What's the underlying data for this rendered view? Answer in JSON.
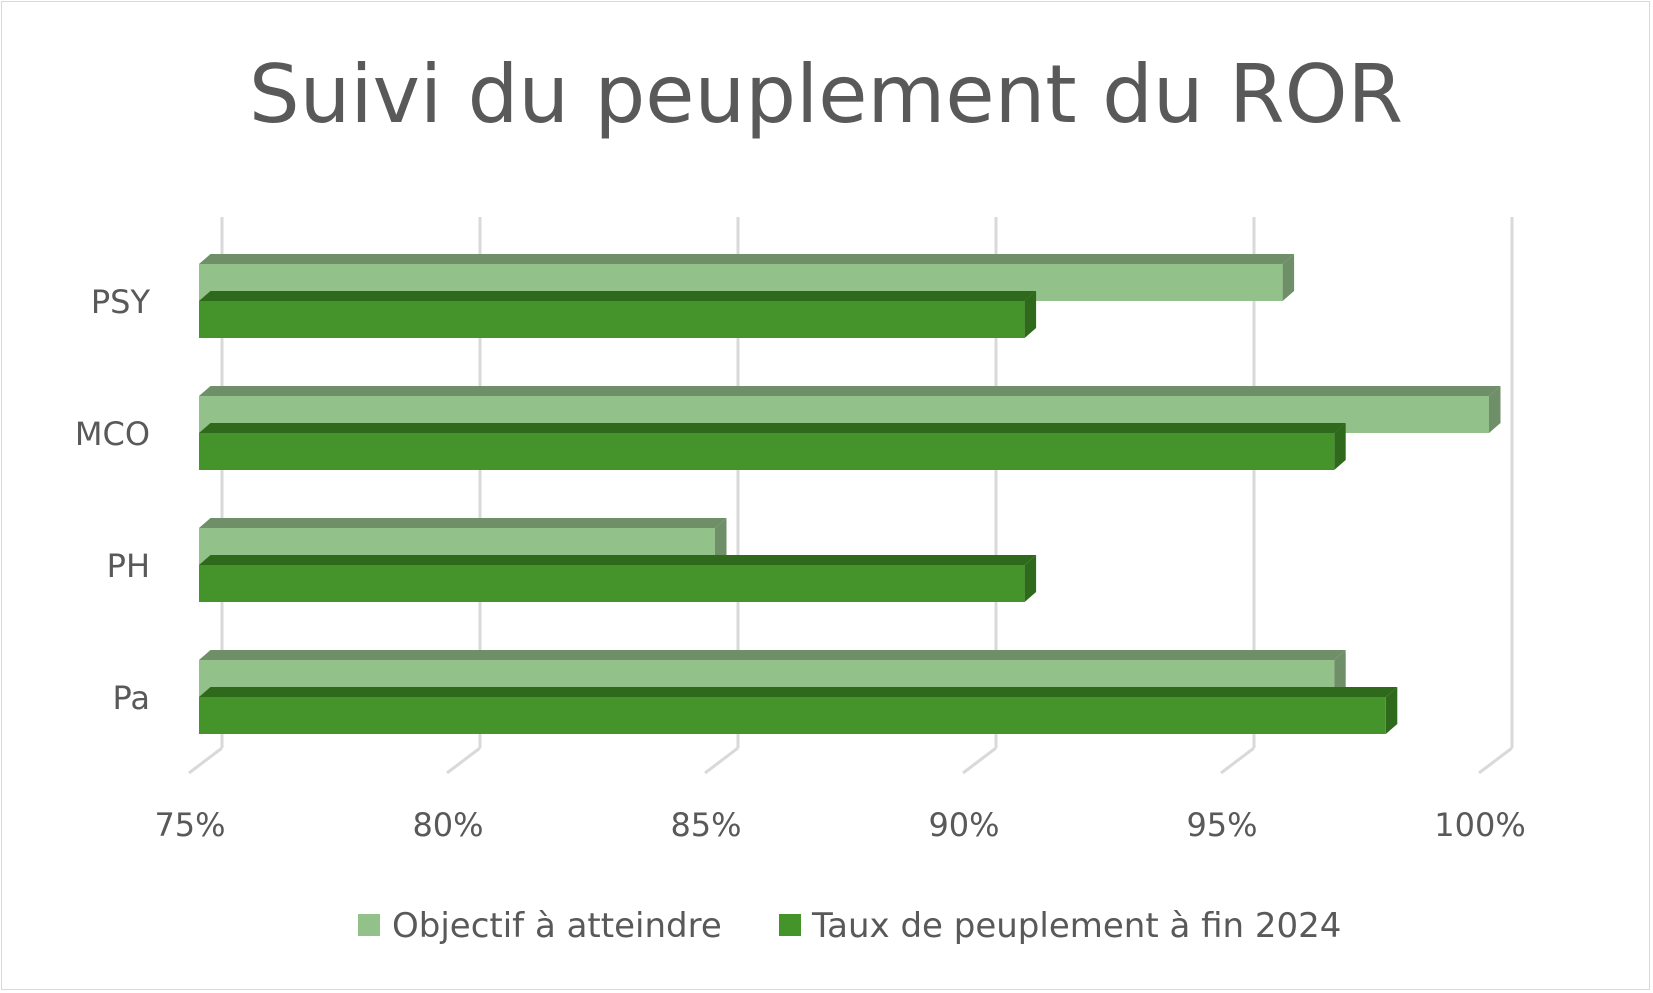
{
  "chart_data": {
    "type": "bar",
    "orientation": "horizontal",
    "style": "3d",
    "title": "Suivi du peuplement du ROR",
    "categories": [
      "PSY",
      "MCO",
      "PH",
      "Pa"
    ],
    "series": [
      {
        "name": "Objectif à atteindre",
        "values": [
          96,
          100,
          85,
          97
        ],
        "color": "#93c18a",
        "top_color": "#6f8f68"
      },
      {
        "name": "Taux de peuplement à fin 2024",
        "values": [
          91,
          97,
          91,
          98
        ],
        "color": "#45932b",
        "top_color": "#2f6a1c"
      }
    ],
    "xlim": [
      75,
      100
    ],
    "xticks": [
      75,
      80,
      85,
      90,
      95,
      100
    ],
    "xtick_labels": [
      "75%",
      "80%",
      "85%",
      "90%",
      "95%",
      "100%"
    ],
    "xlabel": "",
    "ylabel": "",
    "grid": true,
    "legend_position": "bottom"
  },
  "colors": {
    "grid": "#d9d9d9",
    "text": "#595959",
    "frame": "#d9d9d9"
  }
}
